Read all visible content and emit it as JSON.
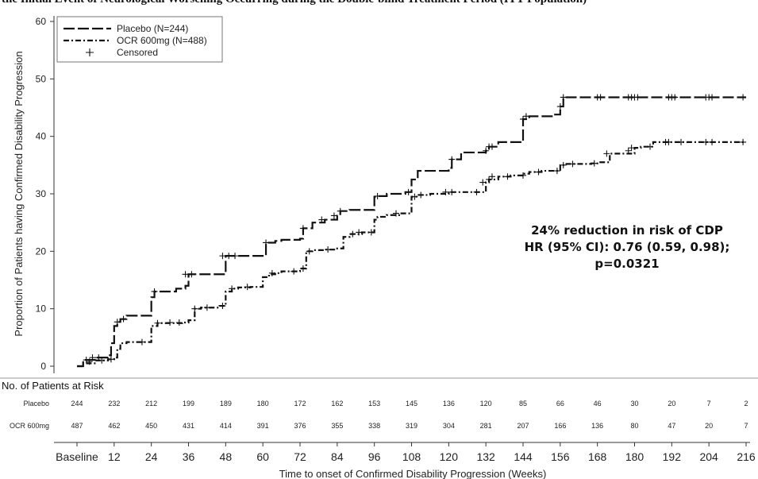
{
  "page_title": "the Initial Event of Neurological Worsening Occurring during the Double-blind Treatment Period (ITT Population)",
  "annotation": {
    "line1": "24% reduction in risk of CDP",
    "line2": "HR (95% CI): 0.76 (0.59, 0.98);",
    "line3": "p=0.0321"
  },
  "risk_table": {
    "header": "No. of Patients at Risk",
    "rows": [
      {
        "label": "Placebo",
        "values": [
          "244",
          "232",
          "212",
          "199",
          "189",
          "180",
          "172",
          "162",
          "153",
          "145",
          "136",
          "120",
          "85",
          "66",
          "46",
          "30",
          "20",
          "7",
          "2"
        ]
      },
      {
        "label": "OCR 600mg",
        "values": [
          "487",
          "462",
          "450",
          "431",
          "414",
          "391",
          "376",
          "355",
          "338",
          "319",
          "304",
          "281",
          "207",
          "166",
          "136",
          "80",
          "47",
          "20",
          "7"
        ]
      }
    ]
  },
  "colors": {
    "line": "#111111",
    "axis": "#333333"
  },
  "chart_data": {
    "type": "line",
    "title": "",
    "xlabel": "Time to onset of Confirmed Disability Progression (Weeks)",
    "ylabel": "Proportion of Patients having Confirmed Disability Progression",
    "xlim": [
      0,
      216
    ],
    "ylim": [
      0,
      60
    ],
    "x_ticks": [
      0,
      12,
      24,
      36,
      48,
      60,
      72,
      84,
      96,
      108,
      120,
      132,
      144,
      156,
      168,
      180,
      192,
      204,
      216
    ],
    "x_tick_labels": [
      "Baseline",
      "12",
      "24",
      "36",
      "48",
      "60",
      "72",
      "84",
      "96",
      "108",
      "120",
      "132",
      "144",
      "156",
      "168",
      "180",
      "192",
      "204",
      "216"
    ],
    "y_ticks": [
      0,
      10,
      20,
      30,
      40,
      50,
      60
    ],
    "legend_position": "top-left",
    "legend": [
      {
        "label": "Placebo (N=244)",
        "style": "dashed"
      },
      {
        "label": "OCR 600mg (N=488)",
        "style": "dash-dot"
      },
      {
        "label": "Censored",
        "style": "plus"
      }
    ],
    "series": [
      {
        "name": "Placebo (N=244)",
        "style": "dashed",
        "x": [
          0,
          2,
          4,
          6,
          8,
          10,
          11,
          12,
          13,
          14,
          16,
          20,
          24,
          25,
          28,
          32,
          35,
          36,
          40,
          46,
          48,
          54,
          60,
          61,
          64,
          66,
          72,
          73,
          76,
          80,
          84,
          85,
          88,
          92,
          96,
          97,
          100,
          106,
          108,
          110,
          114,
          120,
          121,
          124,
          132,
          133,
          136,
          143,
          144,
          146,
          150,
          154,
          156,
          157,
          168,
          216
        ],
        "y": [
          0,
          1.1,
          1.1,
          1.5,
          1.5,
          1.9,
          4,
          7,
          7.7,
          8.2,
          8.8,
          8.8,
          12,
          13,
          13,
          13.5,
          14,
          16,
          16,
          16,
          19.2,
          19.2,
          19.2,
          21.5,
          21.8,
          22,
          22.2,
          24,
          25,
          25.5,
          26.2,
          27,
          27.2,
          27.2,
          29.5,
          29.6,
          30,
          30.3,
          32.5,
          34,
          34,
          34.5,
          36,
          37.2,
          37.5,
          38.2,
          39,
          39,
          43,
          43.5,
          43.5,
          43.8,
          45.2,
          46.8,
          46.8,
          46.8
        ],
        "censored_x": [
          3,
          5,
          7,
          13,
          15,
          25,
          35,
          37,
          47,
          49,
          51,
          61,
          73,
          79,
          83,
          85,
          97,
          107,
          121,
          132,
          133,
          134,
          144,
          145,
          156,
          157,
          168,
          169,
          178,
          179,
          180,
          181,
          191,
          192,
          193,
          203,
          204,
          205,
          215
        ],
        "censored_y": [
          1.1,
          1.5,
          1.5,
          7.7,
          8.2,
          13,
          16,
          16,
          19.2,
          19.2,
          19.2,
          21.5,
          24,
          25.5,
          26.2,
          27,
          29.6,
          30.3,
          36,
          37.5,
          38.2,
          38.2,
          43,
          43.5,
          45.2,
          46.8,
          46.8,
          46.8,
          46.8,
          46.8,
          46.8,
          46.8,
          46.8,
          46.8,
          46.8,
          46.8,
          46.8,
          46.8,
          46.8
        ]
      },
      {
        "name": "OCR 600mg (N=488)",
        "style": "dash-dot",
        "x": [
          0,
          2,
          6,
          10,
          12,
          13,
          14,
          16,
          20,
          24,
          26,
          30,
          34,
          36,
          38,
          40,
          46,
          48,
          50,
          52,
          56,
          60,
          62,
          64,
          66,
          72,
          74,
          76,
          80,
          84,
          86,
          88,
          92,
          96,
          97,
          100,
          104,
          108,
          110,
          114,
          120,
          124,
          128,
          132,
          133,
          136,
          140,
          144,
          146,
          150,
          156,
          158,
          166,
          168,
          172,
          180,
          182,
          186,
          216
        ],
        "y": [
          0,
          0.5,
          1,
          1.2,
          1.5,
          3,
          4,
          4.2,
          4.2,
          7,
          7.5,
          7.5,
          7.6,
          8,
          10,
          10.2,
          10.5,
          13,
          13.5,
          13.7,
          13.8,
          15.5,
          16,
          16.2,
          16.5,
          17,
          20,
          20.2,
          20.3,
          20.5,
          22.5,
          23,
          23.3,
          25.5,
          26,
          26.3,
          26.6,
          29.5,
          29.8,
          30,
          30.3,
          30.3,
          30.3,
          32,
          32.5,
          33,
          33.2,
          33.5,
          33.8,
          34,
          35,
          35.2,
          35.3,
          35.5,
          37,
          38,
          38.2,
          39,
          39
        ],
        "censored_x": [
          4,
          8,
          11,
          21,
          26,
          30,
          33,
          38,
          42,
          47,
          50,
          55,
          63,
          70,
          73,
          75,
          81,
          89,
          91,
          95,
          103,
          109,
          111,
          119,
          121,
          129,
          131,
          133,
          134,
          139,
          144,
          149,
          155,
          157,
          160,
          167,
          171,
          178,
          179,
          185,
          190,
          191,
          195,
          203,
          205,
          215
        ],
        "censored_y": [
          0.8,
          1,
          1.2,
          4.2,
          7.5,
          7.6,
          7.6,
          10,
          10.2,
          10.5,
          13.5,
          13.8,
          16.2,
          16.5,
          17,
          20,
          20.3,
          23,
          23.3,
          23.3,
          26.6,
          29.5,
          29.8,
          30.3,
          30.3,
          30.3,
          32,
          32.5,
          33,
          33,
          33.2,
          33.8,
          34,
          35,
          35.2,
          35.3,
          37,
          37.5,
          38,
          38.2,
          39,
          39,
          39,
          39,
          39,
          39
        ]
      }
    ]
  }
}
